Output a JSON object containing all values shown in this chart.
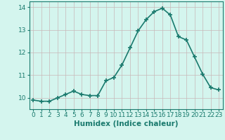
{
  "x": [
    0,
    1,
    2,
    3,
    4,
    5,
    6,
    7,
    8,
    9,
    10,
    11,
    12,
    13,
    14,
    15,
    16,
    17,
    18,
    19,
    20,
    21,
    22,
    23
  ],
  "y": [
    9.9,
    9.85,
    9.85,
    10.0,
    10.15,
    10.3,
    10.15,
    10.1,
    10.1,
    10.75,
    10.9,
    11.45,
    12.2,
    12.95,
    13.45,
    13.8,
    13.95,
    13.65,
    12.7,
    12.55,
    11.8,
    11.05,
    10.45,
    10.35
  ],
  "line_color": "#1a7a6e",
  "marker": "+",
  "marker_size": 4,
  "marker_lw": 1.2,
  "bg_color": "#d4f5ee",
  "grid_color": "#c8b8b8",
  "axis_color": "#1a7a6e",
  "xlabel": "Humidex (Indice chaleur)",
  "xlim": [
    -0.5,
    23.5
  ],
  "ylim": [
    9.5,
    14.25
  ],
  "yticks": [
    10,
    11,
    12,
    13,
    14
  ],
  "xticks": [
    0,
    1,
    2,
    3,
    4,
    5,
    6,
    7,
    8,
    9,
    10,
    11,
    12,
    13,
    14,
    15,
    16,
    17,
    18,
    19,
    20,
    21,
    22,
    23
  ],
  "xlabel_fontsize": 7.5,
  "tick_fontsize": 6.5,
  "linewidth": 1.2
}
